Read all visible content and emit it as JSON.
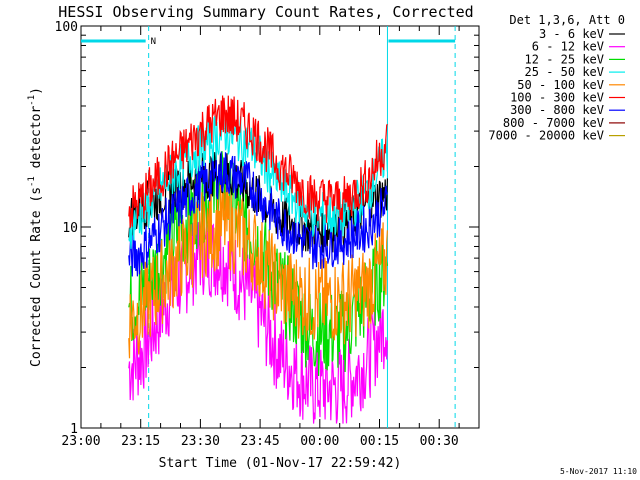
{
  "chart_data": {
    "type": "line",
    "title": "HESSI Observing Summary Count Rates, Corrected",
    "xlabel": "Start Time (01-Nov-17 22:59:42)",
    "ylabel": "Corrected Count Rate (s⁻¹ detector⁻¹)",
    "ylabel_main": "Corrected Count Rate (s",
    "ylabel_mid": " detector",
    "ylabel_end": ")",
    "ylabel_sup": "-1",
    "yscale": "log",
    "ylim": [
      1,
      100
    ],
    "xlim_minutes": [
      0,
      100
    ],
    "x_ticks": [
      {
        "min": 0,
        "label": "23:00"
      },
      {
        "min": 15,
        "label": "23:15"
      },
      {
        "min": 30,
        "label": "23:30"
      },
      {
        "min": 45,
        "label": "23:45"
      },
      {
        "min": 60,
        "label": "00:00"
      },
      {
        "min": 75,
        "label": "00:15"
      },
      {
        "min": 90,
        "label": "00:30"
      }
    ],
    "y_ticks": [
      {
        "v": 1,
        "label": "1"
      },
      {
        "v": 10,
        "label": "10"
      },
      {
        "v": 100,
        "label": "100"
      }
    ],
    "legend_header": "Det 1,3,6, Att 0",
    "series": [
      {
        "name": "3 - 6 keV",
        "color": "#000000",
        "values": [
          11,
          12.5,
          15,
          18,
          19,
          15,
          11,
          9.5,
          10,
          13,
          15
        ]
      },
      {
        "name": "6 - 12 keV",
        "color": "#ff00ff",
        "values": [
          2.0,
          2.3,
          4.5,
          7.5,
          7.0,
          4.5,
          2.3,
          1.6,
          1.6,
          2.2,
          3.5
        ]
      },
      {
        "name": "12 - 25 keV",
        "color": "#00dd00",
        "values": [
          4.0,
          4.5,
          8.0,
          13.5,
          15,
          9.5,
          5.0,
          3.0,
          3.0,
          4.5,
          6.5
        ]
      },
      {
        "name": "25 - 50 keV",
        "color": "#00eeee",
        "values": [
          10,
          11.5,
          17.5,
          25,
          30,
          25,
          16,
          11.5,
          11.5,
          15,
          24
        ]
      },
      {
        "name": "50 - 100 keV",
        "color": "#ff8800",
        "values": [
          3.5,
          3.8,
          6.0,
          9.0,
          10.5,
          8.0,
          5.0,
          4.3,
          4.3,
          5.0,
          7.0
        ]
      },
      {
        "name": "100 - 300 keV",
        "color": "#ff0000",
        "values": [
          12,
          13.5,
          20,
          30,
          37,
          30,
          20,
          14,
          13.5,
          17,
          27
        ]
      },
      {
        "name": "300 - 800 keV",
        "color": "#0000ff",
        "values": [
          7.0,
          7.5,
          11,
          16,
          19,
          16,
          10.5,
          8.0,
          8.5,
          10,
          13
        ]
      },
      {
        "name": "800 - 7000 keV",
        "color": "#8b0000",
        "values": []
      },
      {
        "name": "7000 - 20000 keV",
        "color": "#b8a000",
        "values": []
      }
    ],
    "series_x_minutes": [
      12,
      15,
      22,
      30,
      36,
      43,
      50,
      58,
      66,
      72,
      77
    ],
    "attenuator_bars": [
      {
        "label": "N",
        "x_start_minutes": 0,
        "x_end_minutes": 17
      }
    ],
    "sun_lines_minutes": [
      17,
      77,
      94
    ]
  },
  "footer": {
    "date_stamp": "5-Nov-2017 11:10"
  }
}
